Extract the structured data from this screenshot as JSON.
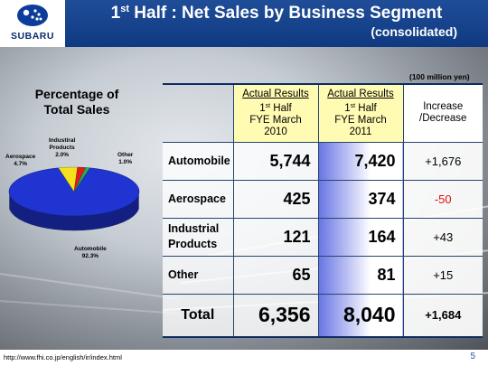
{
  "header": {
    "brand": "SUBARU",
    "title_prefix": "1",
    "title_sup": "st",
    "title_rest": " Half : Net Sales by Business Segment",
    "subtitle": "(consolidated)"
  },
  "pie": {
    "title_line1": "Percentage of",
    "title_line2": "Total Sales",
    "slices": [
      {
        "name": "Automobile",
        "pct_label": "92.3%",
        "value": 92.3,
        "color": "#1f34d0"
      },
      {
        "name": "Aerospace",
        "pct_label": "4.7%",
        "value": 4.7,
        "color": "#f5e21c"
      },
      {
        "name": "Industrial Products",
        "name_line1": "Industiral",
        "name_line2": "Products",
        "pct_label": "2.0%",
        "value": 2.0,
        "color": "#e01b1b"
      },
      {
        "name": "Other",
        "pct_label": "1.0%",
        "value": 1.0,
        "color": "#25b34a"
      }
    ]
  },
  "table": {
    "unit": "(100 million yen)",
    "col_2010": {
      "line1": "Actual Results",
      "line2_num": "1",
      "line2_sup": "st",
      "line2_rest": " Half",
      "line3": "FYE March",
      "line4": "2010"
    },
    "col_2011": {
      "line1": "Actual Results",
      "line2_num": "1",
      "line2_sup": "st",
      "line2_rest": " Half",
      "line3": "FYE March",
      "line4": "2011"
    },
    "col_inc": {
      "line1": "Increase",
      "line2": "/Decrease"
    },
    "rows": [
      {
        "label": "Automobile",
        "v2010": "5,744",
        "v2011": "7,420",
        "change": "+1,676"
      },
      {
        "label": "Aerospace",
        "v2010": "425",
        "v2011": "374",
        "change": "-50"
      },
      {
        "label_line1": "Industrial",
        "label_line2": "Products",
        "v2010": "121",
        "v2011": "164",
        "change": "+43"
      },
      {
        "label": "Other",
        "v2010": "65",
        "v2011": "81",
        "change": "+15"
      }
    ],
    "total": {
      "label": "Total",
      "v2010": "6,356",
      "v2011": "8,040",
      "change": "+1,684"
    }
  },
  "footer": {
    "url": "http://www.fhi.co.jp/english/ir/index.html",
    "page": "5"
  },
  "colors": {
    "header_blue": "#0f3a82",
    "highlight_yellow": "#fffbb3",
    "negative_red": "#e01010"
  }
}
